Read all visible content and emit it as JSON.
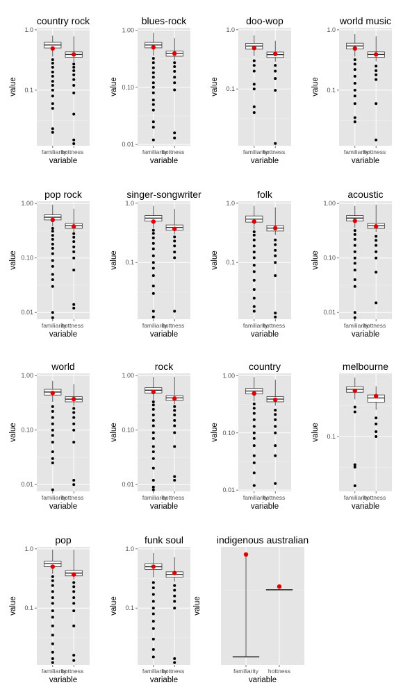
{
  "chart_data": [
    {
      "type": "box",
      "title": "country rock",
      "xlabel": "variable",
      "ylabel": "value",
      "categories": [
        "familiarity",
        "hottness"
      ],
      "y_scale": "log",
      "y_ticks": [
        0.1,
        1.0
      ],
      "y_tick_labels": [
        "0.1",
        "1.0"
      ],
      "ylim": [
        0.012,
        1.08
      ],
      "series": [
        {
          "name": "familiarity",
          "whisker_low": 0.36,
          "q1": 0.5,
          "median": 0.56,
          "q3": 0.62,
          "whisker_high": 0.8,
          "mean": 0.49,
          "outliers": [
            0.02,
            0.023,
            0.05,
            0.06,
            0.08,
            0.1,
            0.12,
            0.14,
            0.17,
            0.2,
            0.24,
            0.28,
            0.32
          ]
        },
        {
          "name": "hottness",
          "whisker_low": 0.29,
          "q1": 0.35,
          "median": 0.39,
          "q3": 0.43,
          "whisker_high": 0.78,
          "mean": 0.39,
          "outliers": [
            0.013,
            0.015,
            0.04,
            0.09,
            0.12,
            0.15,
            0.18,
            0.21,
            0.24,
            0.27
          ]
        }
      ]
    },
    {
      "type": "box",
      "title": "blues-rock",
      "xlabel": "variable",
      "ylabel": "value",
      "categories": [
        "familiarity",
        "hottness"
      ],
      "y_scale": "log",
      "y_ticks": [
        0.01,
        0.1,
        1.0
      ],
      "y_tick_labels": [
        "0.01",
        "0.10",
        "1.00"
      ],
      "ylim": [
        0.0095,
        1.1
      ],
      "series": [
        {
          "name": "familiarity",
          "whisker_low": 0.36,
          "q1": 0.49,
          "median": 0.55,
          "q3": 0.61,
          "whisker_high": 0.9,
          "mean": 0.5,
          "outliers": [
            0.012,
            0.02,
            0.025,
            0.04,
            0.05,
            0.06,
            0.08,
            0.1,
            0.12,
            0.15,
            0.18,
            0.22,
            0.27,
            0.32
          ]
        },
        {
          "name": "hottness",
          "whisker_low": 0.3,
          "q1": 0.35,
          "median": 0.39,
          "q3": 0.43,
          "whisker_high": 0.72,
          "mean": 0.39,
          "outliers": [
            0.013,
            0.016,
            0.09,
            0.12,
            0.15,
            0.19,
            0.23,
            0.27
          ]
        }
      ]
    },
    {
      "type": "box",
      "title": "doo-wop",
      "xlabel": "variable",
      "ylabel": "value",
      "categories": [
        "familiarity",
        "hottness"
      ],
      "y_scale": "log",
      "y_ticks": [
        0.1,
        1.0
      ],
      "y_tick_labels": [
        "0.1",
        "1.0"
      ],
      "ylim": [
        0.011,
        1.08
      ],
      "series": [
        {
          "name": "familiarity",
          "whisker_low": 0.36,
          "q1": 0.47,
          "median": 0.53,
          "q3": 0.59,
          "whisker_high": 0.8,
          "mean": 0.49,
          "outliers": [
            0.04,
            0.05,
            0.1,
            0.12,
            0.2,
            0.25,
            0.3
          ]
        },
        {
          "name": "hottness",
          "whisker_low": 0.29,
          "q1": 0.34,
          "median": 0.38,
          "q3": 0.42,
          "whisker_high": 0.65,
          "mean": 0.39,
          "outliers": [
            0.012,
            0.095,
            0.15,
            0.2,
            0.25
          ]
        }
      ]
    },
    {
      "type": "box",
      "title": "world music",
      "xlabel": "variable",
      "ylabel": "value",
      "categories": [
        "familiarity",
        "hottness"
      ],
      "y_scale": "log",
      "y_ticks": [
        0.1,
        1.0
      ],
      "y_tick_labels": [
        "0.1",
        "1.0"
      ],
      "ylim": [
        0.012,
        1.08
      ],
      "series": [
        {
          "name": "familiarity",
          "whisker_low": 0.36,
          "q1": 0.48,
          "median": 0.54,
          "q3": 0.6,
          "whisker_high": 0.85,
          "mean": 0.49,
          "outliers": [
            0.03,
            0.035,
            0.06,
            0.08,
            0.1,
            0.13,
            0.17,
            0.22,
            0.27,
            0.32
          ]
        },
        {
          "name": "hottness",
          "whisker_low": 0.3,
          "q1": 0.35,
          "median": 0.39,
          "q3": 0.43,
          "whisker_high": 0.78,
          "mean": 0.39,
          "outliers": [
            0.015,
            0.06,
            0.15,
            0.18,
            0.21,
            0.25
          ]
        }
      ]
    },
    {
      "type": "box",
      "title": "pop rock",
      "xlabel": "variable",
      "ylabel": "value",
      "categories": [
        "familiarity",
        "hottness"
      ],
      "y_scale": "log",
      "y_ticks": [
        0.01,
        0.1,
        1.0
      ],
      "y_tick_labels": [
        "0.01",
        "0.10",
        "1.00"
      ],
      "ylim": [
        0.0075,
        1.1
      ],
      "series": [
        {
          "name": "familiarity",
          "whisker_low": 0.38,
          "q1": 0.5,
          "median": 0.56,
          "q3": 0.62,
          "whisker_high": 0.95,
          "mean": 0.5,
          "outliers": [
            0.008,
            0.01,
            0.03,
            0.04,
            0.05,
            0.07,
            0.09,
            0.12,
            0.15,
            0.18,
            0.22,
            0.26,
            0.31,
            0.35
          ]
        },
        {
          "name": "hottness",
          "whisker_low": 0.3,
          "q1": 0.35,
          "median": 0.39,
          "q3": 0.43,
          "whisker_high": 0.8,
          "mean": 0.38,
          "outliers": [
            0.012,
            0.014,
            0.06,
            0.1,
            0.13,
            0.16,
            0.2,
            0.24,
            0.28
          ]
        }
      ]
    },
    {
      "type": "box",
      "title": "singer-songwriter",
      "xlabel": "variable",
      "ylabel": "value",
      "categories": [
        "familiarity",
        "hottness"
      ],
      "y_scale": "log",
      "y_ticks": [
        0.1,
        1.0
      ],
      "y_tick_labels": [
        "0.1",
        "1.0"
      ],
      "ylim": [
        0.011,
        1.08
      ],
      "series": [
        {
          "name": "familiarity",
          "whisker_low": 0.38,
          "q1": 0.5,
          "median": 0.56,
          "q3": 0.62,
          "whisker_high": 0.9,
          "mean": 0.49,
          "outliers": [
            0.012,
            0.015,
            0.03,
            0.04,
            0.06,
            0.08,
            0.1,
            0.13,
            0.17,
            0.21,
            0.26,
            0.31,
            0.35
          ]
        },
        {
          "name": "hottness",
          "whisker_low": 0.3,
          "q1": 0.35,
          "median": 0.39,
          "q3": 0.43,
          "whisker_high": 0.8,
          "mean": 0.37,
          "outliers": [
            0.015,
            0.12,
            0.15,
            0.19,
            0.23,
            0.27
          ]
        }
      ]
    },
    {
      "type": "box",
      "title": "folk",
      "xlabel": "variable",
      "ylabel": "value",
      "categories": [
        "familiarity",
        "hottness"
      ],
      "y_scale": "log",
      "y_ticks": [
        0.1,
        1.0
      ],
      "y_tick_labels": [
        "0.1",
        "1.0"
      ],
      "ylim": [
        0.011,
        1.08
      ],
      "series": [
        {
          "name": "familiarity",
          "whisker_low": 0.36,
          "q1": 0.48,
          "median": 0.54,
          "q3": 0.61,
          "whisker_high": 0.9,
          "mean": 0.49,
          "outliers": [
            0.015,
            0.018,
            0.025,
            0.035,
            0.05,
            0.07,
            0.09,
            0.12,
            0.15,
            0.19,
            0.24,
            0.29,
            0.33
          ]
        },
        {
          "name": "hottness",
          "whisker_low": 0.29,
          "q1": 0.34,
          "median": 0.38,
          "q3": 0.42,
          "whisker_high": 0.85,
          "mean": 0.38,
          "outliers": [
            0.012,
            0.014,
            0.06,
            0.1,
            0.13,
            0.16,
            0.2,
            0.24
          ]
        }
      ]
    },
    {
      "type": "box",
      "title": "acoustic",
      "xlabel": "variable",
      "ylabel": "value",
      "categories": [
        "familiarity",
        "hottness"
      ],
      "y_scale": "log",
      "y_ticks": [
        0.01,
        0.1,
        1.0
      ],
      "y_tick_labels": [
        "0.01",
        "0.10",
        "1.00"
      ],
      "ylim": [
        0.0075,
        1.1
      ],
      "series": [
        {
          "name": "familiarity",
          "whisker_low": 0.36,
          "q1": 0.48,
          "median": 0.54,
          "q3": 0.6,
          "whisker_high": 0.9,
          "mean": 0.48,
          "outliers": [
            0.008,
            0.01,
            0.03,
            0.04,
            0.06,
            0.08,
            0.1,
            0.13,
            0.17,
            0.22,
            0.27,
            0.32
          ]
        },
        {
          "name": "hottness",
          "whisker_low": 0.3,
          "q1": 0.35,
          "median": 0.39,
          "q3": 0.43,
          "whisker_high": 0.95,
          "mean": 0.38,
          "outliers": [
            0.015,
            0.055,
            0.1,
            0.13,
            0.17,
            0.21,
            0.25
          ]
        }
      ]
    },
    {
      "type": "box",
      "title": "world",
      "xlabel": "variable",
      "ylabel": "value",
      "categories": [
        "familiarity",
        "hottness"
      ],
      "y_scale": "log",
      "y_ticks": [
        0.01,
        0.1,
        1.0
      ],
      "y_tick_labels": [
        "0.01",
        "0.10",
        "1.00"
      ],
      "ylim": [
        0.0075,
        1.1
      ],
      "series": [
        {
          "name": "familiarity",
          "whisker_low": 0.33,
          "q1": 0.44,
          "median": 0.5,
          "q3": 0.56,
          "whisker_high": 0.8,
          "mean": 0.48,
          "outliers": [
            0.008,
            0.025,
            0.03,
            0.04,
            0.06,
            0.08,
            0.1,
            0.13,
            0.17,
            0.22,
            0.27
          ]
        },
        {
          "name": "hottness",
          "whisker_low": 0.28,
          "q1": 0.33,
          "median": 0.37,
          "q3": 0.41,
          "whisker_high": 0.7,
          "mean": 0.37,
          "outliers": [
            0.01,
            0.012,
            0.06,
            0.1,
            0.13,
            0.17,
            0.21,
            0.25
          ]
        }
      ]
    },
    {
      "type": "box",
      "title": "rock",
      "xlabel": "variable",
      "ylabel": "value",
      "categories": [
        "familiarity",
        "hottness"
      ],
      "y_scale": "log",
      "y_ticks": [
        0.01,
        0.1,
        1.0
      ],
      "y_tick_labels": [
        "0.01",
        "0.10",
        "1.00"
      ],
      "ylim": [
        0.0075,
        1.1
      ],
      "series": [
        {
          "name": "familiarity",
          "whisker_low": 0.36,
          "q1": 0.48,
          "median": 0.54,
          "q3": 0.6,
          "whisker_high": 0.95,
          "mean": 0.5,
          "outliers": [
            0.008,
            0.009,
            0.012,
            0.02,
            0.03,
            0.04,
            0.05,
            0.07,
            0.09,
            0.12,
            0.15,
            0.19,
            0.24,
            0.29,
            0.33
          ]
        },
        {
          "name": "hottness",
          "whisker_low": 0.3,
          "q1": 0.35,
          "median": 0.39,
          "q3": 0.43,
          "whisker_high": 0.95,
          "mean": 0.38,
          "outliers": [
            0.012,
            0.014,
            0.05,
            0.09,
            0.12,
            0.15,
            0.19,
            0.23,
            0.27
          ]
        }
      ]
    },
    {
      "type": "box",
      "title": "country",
      "xlabel": "variable",
      "ylabel": "value",
      "categories": [
        "familiarity",
        "hottness"
      ],
      "y_scale": "log",
      "y_ticks": [
        0.01,
        0.1,
        1.0
      ],
      "y_tick_labels": [
        "0.01",
        "0.10",
        "1.00"
      ],
      "ylim": [
        0.0095,
        1.1
      ],
      "series": [
        {
          "name": "familiarity",
          "whisker_low": 0.36,
          "q1": 0.48,
          "median": 0.54,
          "q3": 0.6,
          "whisker_high": 0.95,
          "mean": 0.49,
          "outliers": [
            0.012,
            0.02,
            0.03,
            0.04,
            0.06,
            0.08,
            0.1,
            0.13,
            0.17,
            0.22,
            0.27,
            0.32
          ]
        },
        {
          "name": "hottness",
          "whisker_low": 0.3,
          "q1": 0.35,
          "median": 0.39,
          "q3": 0.43,
          "whisker_high": 0.85,
          "mean": 0.38,
          "outliers": [
            0.013,
            0.04,
            0.06,
            0.1,
            0.13,
            0.17,
            0.21,
            0.25
          ]
        }
      ]
    },
    {
      "type": "box",
      "title": "melbourne",
      "xlabel": "variable",
      "ylabel": "value",
      "categories": [
        "familiarity",
        "hottness"
      ],
      "y_scale": "log",
      "y_ticks": [
        0.1
      ],
      "y_tick_labels": [
        "0.1"
      ],
      "ylim": [
        0.013,
        1.05
      ],
      "series": [
        {
          "name": "familiarity",
          "whisker_low": 0.4,
          "q1": 0.52,
          "median": 0.58,
          "q3": 0.64,
          "whisker_high": 0.9,
          "mean": 0.55,
          "outliers": [
            0.016,
            0.032,
            0.035,
            0.25,
            0.3
          ]
        },
        {
          "name": "hottness",
          "whisker_low": 0.27,
          "q1": 0.36,
          "median": 0.42,
          "q3": 0.47,
          "whisker_high": 0.65,
          "mean": 0.45,
          "outliers": [
            0.1,
            0.12,
            0.16,
            0.2
          ]
        }
      ]
    },
    {
      "type": "box",
      "title": "pop",
      "xlabel": "variable",
      "ylabel": "value",
      "categories": [
        "familiarity",
        "hottness"
      ],
      "y_scale": "log",
      "y_ticks": [
        0.1,
        1.0
      ],
      "y_tick_labels": [
        "0.1",
        "1.0"
      ],
      "ylim": [
        0.011,
        1.08
      ],
      "series": [
        {
          "name": "familiarity",
          "whisker_low": 0.38,
          "q1": 0.5,
          "median": 0.56,
          "q3": 0.62,
          "whisker_high": 0.97,
          "mean": 0.5,
          "outliers": [
            0.012,
            0.014,
            0.018,
            0.025,
            0.035,
            0.05,
            0.07,
            0.09,
            0.12,
            0.15,
            0.19,
            0.24,
            0.29,
            0.34
          ]
        },
        {
          "name": "hottness",
          "whisker_low": 0.3,
          "q1": 0.35,
          "median": 0.39,
          "q3": 0.43,
          "whisker_high": 0.97,
          "mean": 0.37,
          "outliers": [
            0.013,
            0.016,
            0.05,
            0.09,
            0.12,
            0.15,
            0.19,
            0.23,
            0.27
          ]
        }
      ]
    },
    {
      "type": "box",
      "title": "funk soul",
      "xlabel": "variable",
      "ylabel": "value",
      "categories": [
        "familiarity",
        "hottness"
      ],
      "y_scale": "log",
      "y_ticks": [
        0.1,
        1.0
      ],
      "y_tick_labels": [
        "0.1",
        "1.0"
      ],
      "ylim": [
        0.011,
        1.08
      ],
      "series": [
        {
          "name": "familiarity",
          "whisker_low": 0.33,
          "q1": 0.45,
          "median": 0.5,
          "q3": 0.56,
          "whisker_high": 0.85,
          "mean": 0.5,
          "outliers": [
            0.015,
            0.02,
            0.03,
            0.045,
            0.06,
            0.08,
            0.1,
            0.13,
            0.17,
            0.22,
            0.27
          ]
        },
        {
          "name": "hottness",
          "whisker_low": 0.28,
          "q1": 0.33,
          "median": 0.37,
          "q3": 0.41,
          "whisker_high": 0.72,
          "mean": 0.39,
          "outliers": [
            0.012,
            0.014,
            0.1,
            0.13,
            0.16,
            0.2,
            0.24
          ]
        }
      ]
    },
    {
      "type": "box",
      "title": "indigenous australian",
      "xlabel": "variable",
      "ylabel": "value",
      "categories": [
        "familiarity",
        "hottness"
      ],
      "y_scale": "log",
      "y_ticks": [],
      "y_tick_labels": [],
      "ylim": [
        0.04,
        1.05
      ],
      "series": [
        {
          "name": "familiarity",
          "whisker_low": 0.05,
          "q1": 0.05,
          "median": 0.05,
          "q3": 0.05,
          "whisker_high": 0.85,
          "mean": 0.85,
          "outliers": []
        },
        {
          "name": "hottness",
          "whisker_low": 0.32,
          "q1": 0.32,
          "median": 0.32,
          "q3": 0.32,
          "whisker_high": 0.32,
          "mean": 0.35,
          "outliers": []
        }
      ]
    }
  ],
  "colors": {
    "panel": "#e5e5e5",
    "grid": "#ffffff",
    "mean_point": "#e00000",
    "box_fill": "#ffffff",
    "outline": "#333333"
  }
}
